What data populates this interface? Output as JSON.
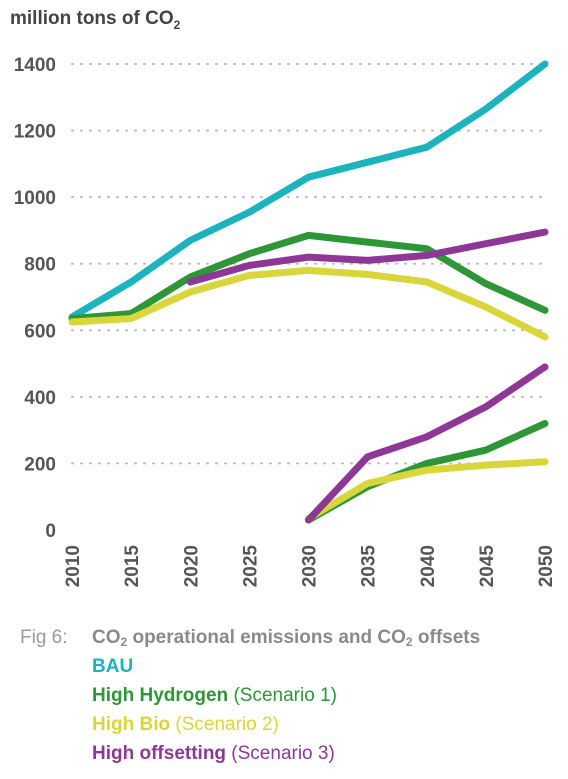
{
  "chart_data": {
    "type": "line",
    "ylabel": "million tons of CO",
    "ylabel_sub": "2",
    "ylim": [
      0,
      1400
    ],
    "yticks": [
      "1400",
      "1200",
      "1000",
      "800",
      "600",
      "400",
      "200",
      "0"
    ],
    "x": [
      "2010",
      "2015",
      "2020",
      "2025",
      "2030",
      "2035",
      "2040",
      "2045",
      "2050"
    ],
    "grid": true,
    "series": [
      {
        "name": "BAU",
        "color": "#1cb3bf",
        "values": [
          640,
          745,
          870,
          955,
          1060,
          1105,
          1150,
          1265,
          1400
        ]
      },
      {
        "name": "High Hydrogen",
        "color": "#2d9637",
        "values": [
          635,
          650,
          760,
          830,
          885,
          865,
          845,
          740,
          660
        ]
      },
      {
        "name": "High Bio",
        "color": "#d9d63c",
        "values": [
          625,
          635,
          715,
          765,
          780,
          768,
          745,
          670,
          580
        ]
      },
      {
        "name": "High offsetting",
        "color": "#8e3797",
        "values": [
          null,
          null,
          745,
          795,
          820,
          810,
          825,
          860,
          895
        ]
      },
      {
        "name": "High Hydrogen offsets",
        "color": "#2d9637",
        "values": [
          null,
          null,
          null,
          null,
          30,
          130,
          200,
          240,
          320
        ]
      },
      {
        "name": "High Bio offsets",
        "color": "#d9d63c",
        "values": [
          null,
          null,
          null,
          null,
          35,
          140,
          180,
          195,
          205
        ]
      },
      {
        "name": "High offsetting offsets",
        "color": "#8e3797",
        "values": [
          null,
          null,
          null,
          null,
          30,
          220,
          280,
          370,
          490
        ]
      }
    ]
  },
  "caption": {
    "fig": "Fig 6:",
    "title_a": "CO",
    "sub_a": "2",
    "title_b": " operational emissions and CO",
    "sub_b": "2",
    "title_c": " offsets"
  },
  "legend": [
    {
      "name": "BAU",
      "note": "",
      "color": "#1cb3bf"
    },
    {
      "name": "High Hydrogen",
      "note": "(Scenario 1)",
      "color": "#2d9637"
    },
    {
      "name": "High Bio",
      "note": "(Scenario 2)",
      "color": "#d9d63c"
    },
    {
      "name": "High offsetting",
      "note": "(Scenario 3)",
      "color": "#8e3797"
    }
  ]
}
